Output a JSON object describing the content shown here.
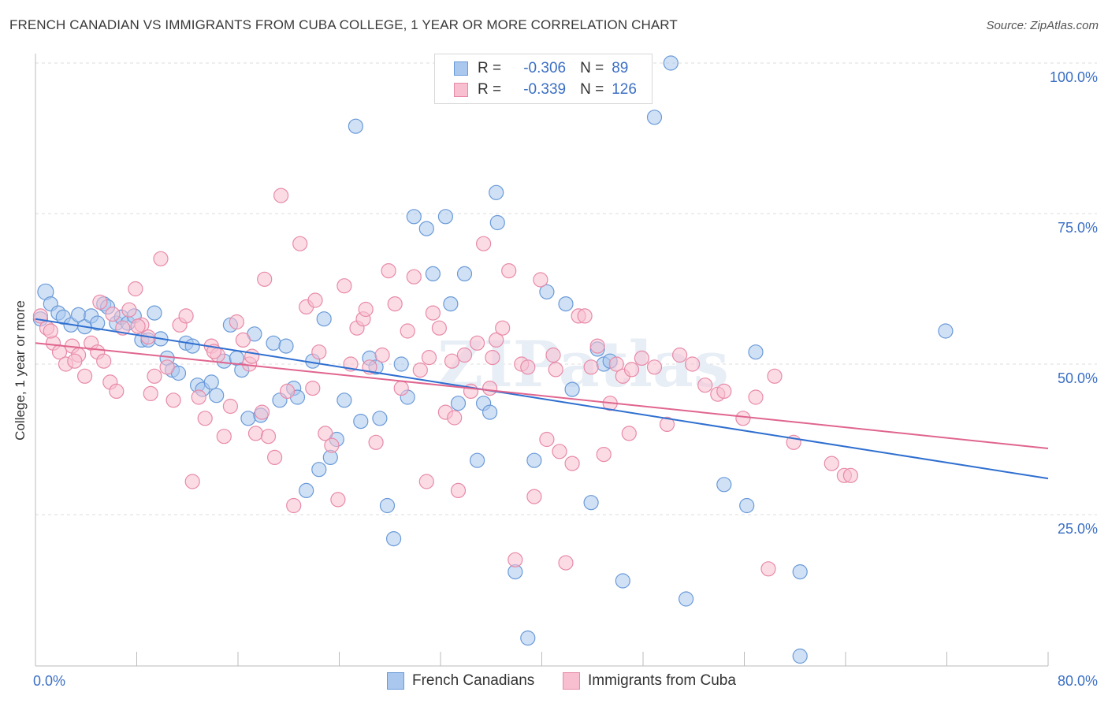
{
  "title": "FRENCH CANADIAN VS IMMIGRANTS FROM CUBA COLLEGE, 1 YEAR OR MORE CORRELATION CHART",
  "source": "Source: ZipAtlas.com",
  "watermark": "ZIPatlas",
  "legend": {
    "rows": [
      {
        "r_label": "R =",
        "r_value": "-0.306",
        "n_label": "N =",
        "n_value": "89",
        "color": "#aac8ee",
        "border": "#6a9ad8"
      },
      {
        "r_label": "R =",
        "r_value": "-0.339",
        "n_label": "N =",
        "n_value": "126",
        "color": "#f7bfd0",
        "border": "#e88aa8"
      }
    ]
  },
  "bottom_legend": [
    {
      "label": "French Canadians",
      "color": "#aac8ee",
      "border": "#6a9ad8"
    },
    {
      "label": "Immigrants from Cuba",
      "color": "#f7bfd0",
      "border": "#e88aa8"
    }
  ],
  "chart_data": {
    "type": "scatter",
    "title": "FRENCH CANADIAN VS IMMIGRANTS FROM CUBA COLLEGE, 1 YEAR OR MORE CORRELATION CHART",
    "xlabel": "",
    "ylabel": "College, 1 year or more",
    "xlim": [
      0,
      80
    ],
    "ylim": [
      0,
      102
    ],
    "x_tick_labels": [
      "0.0%",
      "80.0%"
    ],
    "y_tick_labels": [
      "25.0%",
      "50.0%",
      "75.0%",
      "100.0%"
    ],
    "y_ticks": [
      25,
      50,
      75,
      100
    ],
    "grid": true,
    "series": [
      {
        "name": "French Canadians",
        "color": "#6a9ad8",
        "fill": "#aac8ee",
        "line_color": "#2f6fd0",
        "trend": {
          "x": [
            0,
            80
          ],
          "y": [
            57.5,
            31.0
          ]
        },
        "points": [
          [
            0.4,
            57.5
          ],
          [
            0.8,
            62
          ],
          [
            1.2,
            60
          ],
          [
            1.8,
            58.5
          ],
          [
            2.2,
            57.8
          ],
          [
            2.8,
            56.5
          ],
          [
            3.4,
            58.2
          ],
          [
            3.9,
            56.2
          ],
          [
            4.4,
            58
          ],
          [
            4.9,
            56.8
          ],
          [
            5.4,
            60
          ],
          [
            5.7,
            59.5
          ],
          [
            6.4,
            56.8
          ],
          [
            6.8,
            57.8
          ],
          [
            7.3,
            56.8
          ],
          [
            7.8,
            58
          ],
          [
            8.4,
            54
          ],
          [
            8.9,
            54
          ],
          [
            9.4,
            58.5
          ],
          [
            9.9,
            54.2
          ],
          [
            10.4,
            51
          ],
          [
            10.8,
            49
          ],
          [
            11.3,
            48.5
          ],
          [
            11.9,
            53.5
          ],
          [
            12.4,
            53
          ],
          [
            12.8,
            46.5
          ],
          [
            13.2,
            45.8
          ],
          [
            13.9,
            47
          ],
          [
            14.3,
            44.8
          ],
          [
            14.9,
            50.5
          ],
          [
            15.4,
            56.5
          ],
          [
            15.9,
            51
          ],
          [
            16.3,
            49
          ],
          [
            16.8,
            41
          ],
          [
            17.3,
            55
          ],
          [
            17.8,
            41.5
          ],
          [
            18.8,
            53.5
          ],
          [
            19.3,
            44
          ],
          [
            19.8,
            53
          ],
          [
            20.4,
            46
          ],
          [
            20.7,
            44.5
          ],
          [
            21.4,
            29
          ],
          [
            21.9,
            50.5
          ],
          [
            22.4,
            32.5
          ],
          [
            22.8,
            57.5
          ],
          [
            23.3,
            34.5
          ],
          [
            23.8,
            37.5
          ],
          [
            24.4,
            44
          ],
          [
            25.3,
            89.5
          ],
          [
            25.7,
            40.5
          ],
          [
            26.4,
            51
          ],
          [
            26.9,
            49.5
          ],
          [
            27.8,
            26.5
          ],
          [
            28.3,
            21
          ],
          [
            28.9,
            50
          ],
          [
            29.4,
            44.5
          ],
          [
            29.9,
            74.5
          ],
          [
            30.9,
            72.5
          ],
          [
            31.4,
            65
          ],
          [
            32.4,
            74.5
          ],
          [
            32.8,
            60
          ],
          [
            33.4,
            43.5
          ],
          [
            33.9,
            65
          ],
          [
            34.9,
            34
          ],
          [
            35.4,
            43.5
          ],
          [
            35.9,
            42
          ],
          [
            36.4,
            78.5
          ],
          [
            36.5,
            73.5
          ],
          [
            37.9,
            15.5
          ],
          [
            38.9,
            4.5
          ],
          [
            39.4,
            34
          ],
          [
            40.4,
            62
          ],
          [
            41.9,
            60
          ],
          [
            42.4,
            45.8
          ],
          [
            43.9,
            27
          ],
          [
            44.4,
            52.5
          ],
          [
            44.9,
            50
          ],
          [
            45.4,
            50.5
          ],
          [
            46.4,
            14
          ],
          [
            50.2,
            100
          ],
          [
            51.4,
            11
          ],
          [
            54.4,
            30
          ],
          [
            56.2,
            26.5
          ],
          [
            56.9,
            52
          ],
          [
            60.4,
            15.5
          ],
          [
            60.4,
            1.5
          ],
          [
            71.9,
            55.5
          ],
          [
            48.9,
            91
          ],
          [
            27.2,
            41
          ]
        ]
      },
      {
        "name": "Immigrants from Cuba",
        "color": "#e88aa8",
        "fill": "#f7bfd0",
        "line_color": "#e0658e",
        "trend": {
          "x": [
            0,
            80
          ],
          "y": [
            53.5,
            36.0
          ]
        },
        "points": [
          [
            0.4,
            58
          ],
          [
            0.9,
            56
          ],
          [
            1.4,
            53.5
          ],
          [
            1.9,
            52
          ],
          [
            2.4,
            50
          ],
          [
            2.9,
            53
          ],
          [
            3.4,
            51.5
          ],
          [
            3.9,
            48
          ],
          [
            4.4,
            53.5
          ],
          [
            4.9,
            52
          ],
          [
            5.4,
            50.5
          ],
          [
            5.9,
            47
          ],
          [
            6.4,
            45.5
          ],
          [
            6.9,
            56
          ],
          [
            7.4,
            59
          ],
          [
            7.9,
            62.5
          ],
          [
            8.4,
            56.5
          ],
          [
            8.9,
            54.5
          ],
          [
            9.4,
            48
          ],
          [
            9.9,
            67.5
          ],
          [
            10.4,
            49.5
          ],
          [
            10.9,
            44
          ],
          [
            11.4,
            56.5
          ],
          [
            11.9,
            58
          ],
          [
            12.4,
            30.5
          ],
          [
            12.9,
            44.5
          ],
          [
            13.4,
            41
          ],
          [
            13.9,
            53
          ],
          [
            14.4,
            51.5
          ],
          [
            14.9,
            38
          ],
          [
            15.4,
            43
          ],
          [
            15.9,
            57
          ],
          [
            16.4,
            54
          ],
          [
            16.9,
            50
          ],
          [
            17.4,
            38.5
          ],
          [
            17.9,
            42
          ],
          [
            18.4,
            38
          ],
          [
            18.9,
            34.5
          ],
          [
            19.4,
            78
          ],
          [
            19.9,
            45.5
          ],
          [
            20.4,
            26.5
          ],
          [
            20.9,
            70
          ],
          [
            21.4,
            59.5
          ],
          [
            21.9,
            46
          ],
          [
            22.4,
            52
          ],
          [
            22.9,
            38.5
          ],
          [
            23.4,
            36.5
          ],
          [
            23.9,
            27.5
          ],
          [
            24.4,
            63
          ],
          [
            24.9,
            50
          ],
          [
            25.4,
            56
          ],
          [
            25.9,
            57.5
          ],
          [
            26.4,
            49.5
          ],
          [
            26.9,
            37
          ],
          [
            27.4,
            51.5
          ],
          [
            27.9,
            65.5
          ],
          [
            28.4,
            60
          ],
          [
            28.9,
            46
          ],
          [
            29.4,
            55.5
          ],
          [
            29.9,
            64.5
          ],
          [
            30.4,
            49
          ],
          [
            30.9,
            30.5
          ],
          [
            31.4,
            58.5
          ],
          [
            31.9,
            56
          ],
          [
            32.4,
            42
          ],
          [
            32.9,
            50.5
          ],
          [
            33.4,
            29
          ],
          [
            33.9,
            51.5
          ],
          [
            34.4,
            45.5
          ],
          [
            34.9,
            53.5
          ],
          [
            35.4,
            70
          ],
          [
            35.9,
            46
          ],
          [
            36.4,
            54
          ],
          [
            36.9,
            56
          ],
          [
            37.4,
            65.5
          ],
          [
            37.9,
            17.5
          ],
          [
            38.4,
            50
          ],
          [
            38.9,
            49.5
          ],
          [
            39.4,
            28
          ],
          [
            39.9,
            64
          ],
          [
            40.4,
            37.5
          ],
          [
            40.9,
            51.5
          ],
          [
            41.4,
            35.5
          ],
          [
            41.9,
            17
          ],
          [
            42.4,
            33.5
          ],
          [
            42.9,
            58
          ],
          [
            43.4,
            58
          ],
          [
            43.9,
            49.5
          ],
          [
            44.4,
            53
          ],
          [
            44.9,
            35
          ],
          [
            45.4,
            43.5
          ],
          [
            45.9,
            50
          ],
          [
            46.4,
            48
          ],
          [
            46.9,
            38.5
          ],
          [
            47.9,
            51
          ],
          [
            48.9,
            49.5
          ],
          [
            49.9,
            40
          ],
          [
            50.9,
            51.5
          ],
          [
            51.9,
            50
          ],
          [
            52.9,
            46.5
          ],
          [
            53.9,
            45
          ],
          [
            54.4,
            45.5
          ],
          [
            55.9,
            41
          ],
          [
            56.9,
            44.5
          ],
          [
            57.9,
            16
          ],
          [
            58.4,
            48
          ],
          [
            59.9,
            37
          ],
          [
            62.9,
            33.5
          ],
          [
            63.9,
            31.5
          ],
          [
            64.4,
            31.5
          ],
          [
            1.2,
            55.5
          ],
          [
            3.1,
            50.5
          ],
          [
            6.1,
            58.3
          ],
          [
            8.1,
            56.3
          ],
          [
            17.1,
            51.3
          ],
          [
            26.1,
            59.1
          ],
          [
            31.1,
            51.1
          ],
          [
            36.1,
            51.1
          ],
          [
            41.1,
            49.1
          ],
          [
            47.1,
            49.1
          ],
          [
            22.1,
            60.6
          ],
          [
            14.1,
            52.1
          ],
          [
            9.1,
            45.1
          ],
          [
            5.1,
            60.3
          ],
          [
            18.1,
            64.1
          ],
          [
            33.1,
            41.1
          ]
        ]
      }
    ]
  }
}
